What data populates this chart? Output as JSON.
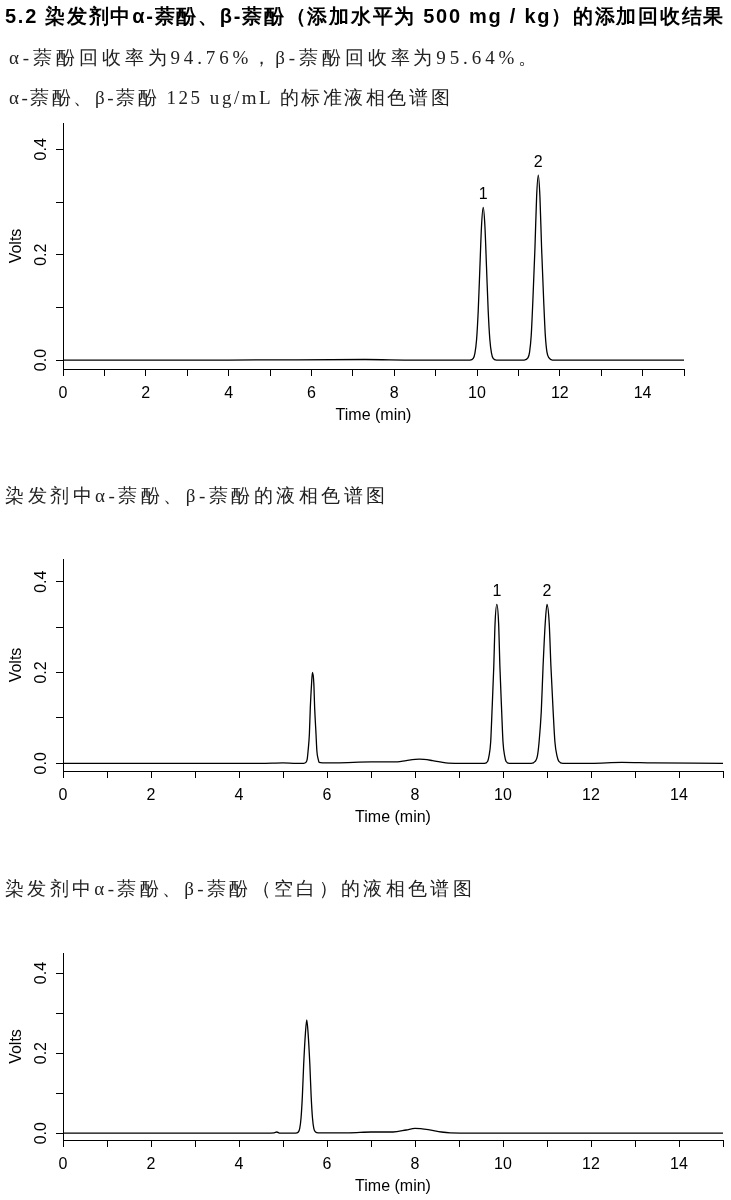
{
  "chart_data": [
    {
      "type": "other",
      "title": "5.2 染发剂中α-萘酚、β-萘酚（添加水平为 500 mg / kg）的添加回收结果",
      "subtitle": "α-萘酚回收率为94.76%，β-萘酚回收率为95.64%。"
    },
    {
      "type": "line",
      "title": "α-萘酚、β-萘酚 125 ug/mL 的标准液相色谱图",
      "xlabel": "Time (min)",
      "ylabel": "Volts",
      "color": "#000000",
      "x": [
        0,
        2.1,
        4,
        7.3,
        8.5,
        9.6,
        9.83,
        9.91,
        9.95,
        9.99,
        10.03,
        10.07,
        10.11,
        10.15,
        10.19,
        10.23,
        10.27,
        10.31,
        10.35,
        10.39,
        10.47,
        10.8,
        11.14,
        11.23,
        11.27,
        11.31,
        11.35,
        11.4,
        11.44,
        11.48,
        11.52,
        11.56,
        11.61,
        11.65,
        11.69,
        11.74,
        11.82,
        12.5,
        15
      ],
      "values": [
        0,
        0,
        0,
        0.001,
        0,
        0,
        0,
        0.003,
        0.013,
        0.039,
        0.094,
        0.176,
        0.256,
        0.29,
        0.256,
        0.176,
        0.094,
        0.039,
        0.013,
        0.003,
        0,
        0,
        0,
        0.004,
        0.015,
        0.047,
        0.114,
        0.213,
        0.31,
        0.351,
        0.31,
        0.213,
        0.114,
        0.047,
        0.015,
        0.004,
        0,
        0,
        0
      ],
      "xlim": [
        0,
        15
      ],
      "xticks": [
        0,
        {
          "value": 1,
          "label": null
        },
        2,
        {
          "value": 3,
          "label": null
        },
        4,
        {
          "value": 5,
          "label": null
        },
        6,
        {
          "value": 7,
          "label": null
        },
        8,
        {
          "value": 9,
          "label": null
        },
        10,
        {
          "value": 11,
          "label": null
        },
        12,
        {
          "value": 13,
          "label": null
        },
        14,
        {
          "value": 15,
          "label": null
        }
      ],
      "ylim": [
        -0.017,
        0.45
      ],
      "yticks": [
        {
          "value": 0,
          "label": "0.0"
        },
        {
          "value": 0.1,
          "label": null
        },
        {
          "value": 0.2,
          "label": "0.2"
        },
        {
          "value": 0.3,
          "label": null
        },
        {
          "value": 0.4,
          "label": "0.4"
        }
      ],
      "annotations": [
        {
          "text": "1",
          "x": 10.15,
          "y": 0.29
        },
        {
          "text": "2",
          "x": 11.48,
          "y": 0.351
        }
      ]
    },
    {
      "type": "line",
      "title": "染发剂中α-萘酚、β-萘酚的液相色谱图",
      "xlabel": "Time (min)",
      "ylabel": "Volts",
      "color": "#000000",
      "x": [
        0,
        2.6,
        4.5,
        5.0,
        5.3,
        5.47,
        5.52,
        5.55,
        5.57,
        5.6,
        5.62,
        5.65,
        5.67,
        5.7,
        5.72,
        5.75,
        5.77,
        5.8,
        5.82,
        5.9,
        6.2,
        7.0,
        7.6,
        7.8,
        8.1,
        8.4,
        8.7,
        9.0,
        9.58,
        9.65,
        9.68,
        9.72,
        9.75,
        9.79,
        9.82,
        9.86,
        9.9,
        9.93,
        9.97,
        10.0,
        10.04,
        10.07,
        10.14,
        10.64,
        10.73,
        10.78,
        10.82,
        10.87,
        10.91,
        10.96,
        11.0,
        11.05,
        11.09,
        11.14,
        11.18,
        11.23,
        11.27,
        11.36,
        12.0,
        12.7,
        13.4,
        15
      ],
      "values": [
        0,
        0,
        0,
        0.001,
        0,
        0,
        0.002,
        0.009,
        0.027,
        0.065,
        0.121,
        0.177,
        0.2,
        0.177,
        0.121,
        0.065,
        0.027,
        0.009,
        0.002,
        0.001,
        0.001,
        0.003,
        0.003,
        0.006,
        0.009,
        0.006,
        0.001,
        0,
        0,
        0.004,
        0.015,
        0.047,
        0.114,
        0.212,
        0.309,
        0.35,
        0.309,
        0.212,
        0.114,
        0.047,
        0.015,
        0.004,
        0,
        0,
        0.004,
        0.015,
        0.047,
        0.114,
        0.212,
        0.309,
        0.35,
        0.309,
        0.212,
        0.114,
        0.047,
        0.015,
        0.004,
        0,
        0,
        0.002,
        0.001,
        0
      ],
      "xlim": [
        0,
        15
      ],
      "xticks": [
        0,
        {
          "value": 1,
          "label": null
        },
        2,
        {
          "value": 3,
          "label": null
        },
        4,
        {
          "value": 5,
          "label": null
        },
        6,
        {
          "value": 7,
          "label": null
        },
        8,
        {
          "value": 9,
          "label": null
        },
        10,
        {
          "value": 11,
          "label": null
        },
        12,
        {
          "value": 13,
          "label": null
        },
        14,
        {
          "value": 15,
          "label": null
        }
      ],
      "ylim": [
        -0.017,
        0.45
      ],
      "yticks": [
        {
          "value": 0,
          "label": "0.0"
        },
        {
          "value": 0.1,
          "label": null
        },
        {
          "value": 0.2,
          "label": "0.2"
        },
        {
          "value": 0.3,
          "label": null
        },
        {
          "value": 0.4,
          "label": "0.4"
        }
      ],
      "annotations": [
        {
          "text": "1",
          "x": 9.86,
          "y": 0.35
        },
        {
          "text": "2",
          "x": 11.0,
          "y": 0.35
        }
      ]
    },
    {
      "type": "line",
      "title": "染发剂中α-萘酚、β-萘酚（空白）的液相色谱图",
      "xlabel": "Time (min)",
      "ylabel": "Volts",
      "color": "#000000",
      "x": [
        0,
        2.7,
        4.6,
        4.8,
        4.86,
        4.93,
        5.28,
        5.35,
        5.38,
        5.41,
        5.44,
        5.47,
        5.51,
        5.54,
        5.57,
        5.61,
        5.64,
        5.67,
        5.7,
        5.74,
        5.8,
        6.5,
        7.0,
        7.5,
        7.8,
        8.0,
        8.3,
        8.6,
        8.8,
        10,
        15
      ],
      "values": [
        0,
        0,
        0,
        0.001,
        0.003,
        0,
        0,
        0.003,
        0.012,
        0.038,
        0.092,
        0.172,
        0.25,
        0.283,
        0.25,
        0.172,
        0.092,
        0.038,
        0.012,
        0.003,
        0.001,
        0.001,
        0.003,
        0.003,
        0.008,
        0.012,
        0.009,
        0.003,
        0.001,
        0,
        0
      ],
      "xlim": [
        0,
        15
      ],
      "xticks": [
        0,
        {
          "value": 1,
          "label": null
        },
        2,
        {
          "value": 3,
          "label": null
        },
        4,
        {
          "value": 5,
          "label": null
        },
        6,
        {
          "value": 7,
          "label": null
        },
        8,
        {
          "value": 9,
          "label": null
        },
        10,
        {
          "value": 11,
          "label": null
        },
        12,
        {
          "value": 13,
          "label": null
        },
        14,
        {
          "value": 15,
          "label": null
        }
      ],
      "ylim": [
        -0.017,
        0.45
      ],
      "yticks": [
        {
          "value": 0,
          "label": "0.0"
        },
        {
          "value": 0.1,
          "label": null
        },
        {
          "value": 0.2,
          "label": "0.2"
        },
        {
          "value": 0.3,
          "label": null
        },
        {
          "value": 0.4,
          "label": "0.4"
        }
      ]
    }
  ]
}
